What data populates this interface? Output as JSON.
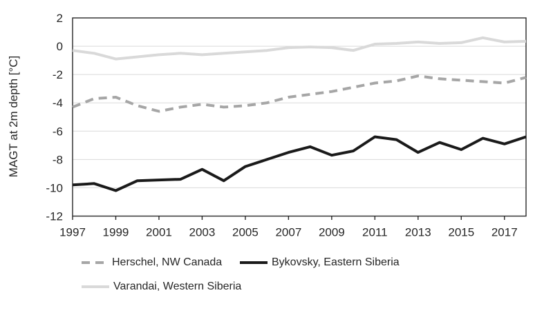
{
  "style": {
    "background": "#ffffff",
    "grid_color": "#d9d9d9",
    "axis_color": "#262626",
    "text_color": "#262626"
  },
  "chart_data": {
    "type": "line",
    "ylabel": "MAGT at 2m depth [°C]",
    "xlabel": "",
    "xlim": [
      1997,
      2018
    ],
    "ylim": [
      -12,
      2
    ],
    "x_ticks": [
      1997,
      1999,
      2001,
      2003,
      2005,
      2007,
      2009,
      2011,
      2013,
      2015,
      2017
    ],
    "y_ticks": [
      2,
      0,
      -2,
      -4,
      -6,
      -8,
      -10,
      -12
    ],
    "grid": "horizontal",
    "legend_position": "bottom",
    "x": [
      1997,
      1998,
      1999,
      2000,
      2001,
      2002,
      2003,
      2004,
      2005,
      2006,
      2007,
      2008,
      2009,
      2010,
      2011,
      2012,
      2013,
      2014,
      2015,
      2016,
      2017,
      2018
    ],
    "series": [
      {
        "name": "Herschel, NW Canada",
        "color": "#a6a6a6",
        "line_style": "dashed",
        "values": [
          -4.3,
          -3.7,
          -3.6,
          -4.2,
          -4.6,
          -4.3,
          -4.1,
          -4.3,
          -4.2,
          -4.0,
          -3.6,
          -3.4,
          -3.2,
          -2.9,
          -2.6,
          -2.45,
          -2.1,
          -2.3,
          -2.4,
          -2.5,
          -2.6,
          -2.2
        ]
      },
      {
        "name": "Bykovsky, Eastern Siberia",
        "color": "#1a1a1a",
        "line_style": "solid",
        "values": [
          -9.8,
          -9.7,
          -10.2,
          -9.5,
          -9.45,
          -9.4,
          -8.7,
          -9.5,
          -8.5,
          -8.0,
          -7.5,
          -7.1,
          -7.7,
          -7.4,
          -6.4,
          -6.6,
          -7.5,
          -6.8,
          -7.3,
          -6.5,
          -6.9,
          -6.4
        ]
      },
      {
        "name": "Varandai, Western Siberia",
        "color": "#d9d9d9",
        "line_style": "solid",
        "values": [
          -0.3,
          -0.5,
          -0.9,
          -0.75,
          -0.6,
          -0.5,
          -0.6,
          -0.5,
          -0.4,
          -0.3,
          -0.1,
          -0.05,
          -0.1,
          -0.3,
          0.15,
          0.2,
          0.3,
          0.2,
          0.25,
          0.6,
          0.3,
          0.35
        ]
      }
    ]
  }
}
